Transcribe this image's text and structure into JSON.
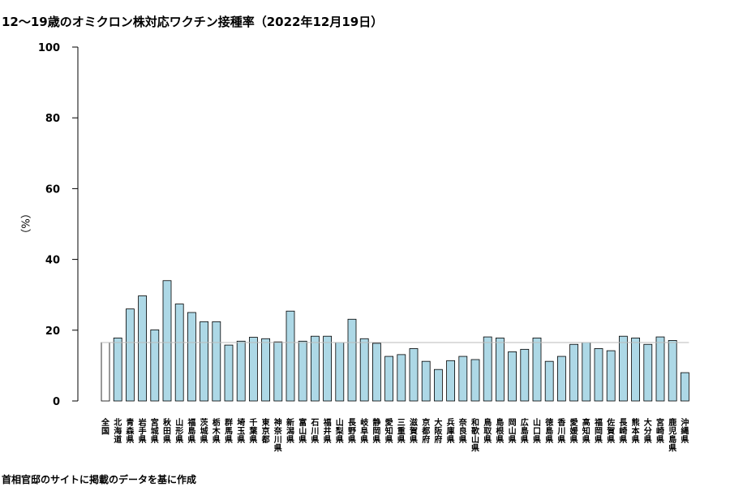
{
  "title": "12～19歳のオミクロン株対応ワクチン接種率（2022年12月19日）",
  "source": "首相官邸のサイトに掲載のデータを基に作成",
  "chart_data": {
    "type": "bar",
    "title": "12～19歳のオミクロン株対応ワクチン接種率（2022年12月19日）",
    "xlabel": "",
    "ylabel": "（%）",
    "ylim": [
      0,
      100
    ],
    "yticks": [
      0,
      20,
      40,
      60,
      80,
      100
    ],
    "grid": false,
    "reference_line": 16.5,
    "colors": {
      "national": "#ffffff",
      "prefecture": "#add8e6",
      "reference_line": "#bbbbbb",
      "bar_border": "#000000"
    },
    "categories": [
      "全国",
      "北海道",
      "青森県",
      "岩手県",
      "宮城県",
      "秋田県",
      "山形県",
      "福島県",
      "茨城県",
      "栃木県",
      "群馬県",
      "埼玉県",
      "千葉県",
      "東京都",
      "神奈川県",
      "新潟県",
      "富山県",
      "石川県",
      "福井県",
      "山梨県",
      "長野県",
      "岐阜県",
      "静岡県",
      "愛知県",
      "三重県",
      "滋賀県",
      "京都府",
      "大阪府",
      "兵庫県",
      "奈良県",
      "和歌山県",
      "鳥取県",
      "島根県",
      "岡山県",
      "広島県",
      "山口県",
      "徳島県",
      "香川県",
      "愛媛県",
      "高知県",
      "福岡県",
      "佐賀県",
      "長崎県",
      "熊本県",
      "大分県",
      "宮崎県",
      "鹿児島県",
      "沖縄県"
    ],
    "values": [
      16.5,
      17.8,
      26.0,
      29.7,
      20.1,
      34.0,
      27.4,
      25.0,
      22.4,
      22.4,
      15.8,
      16.9,
      18.0,
      17.6,
      16.7,
      25.4,
      16.9,
      18.3,
      18.3,
      16.5,
      23.1,
      17.6,
      16.3,
      12.6,
      13.1,
      14.8,
      11.2,
      8.9,
      11.4,
      12.6,
      11.7,
      18.1,
      17.8,
      13.9,
      14.6,
      17.8,
      11.2,
      12.6,
      16.0,
      16.5,
      14.8,
      14.2,
      18.3,
      17.8,
      16.0,
      18.1,
      17.1,
      8.0
    ]
  }
}
